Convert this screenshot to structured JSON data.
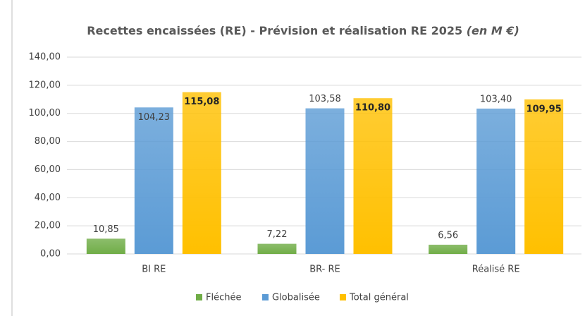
{
  "chart_data": {
    "type": "bar",
    "title": "Recettes encaissées (RE) - Prévision et réalisation RE 2025",
    "title_unit": "(en M €)",
    "categories": [
      "BI RE",
      "BR- RE",
      "Réalisé RE"
    ],
    "series": [
      {
        "name": "Fléchée",
        "color": "#70ad47",
        "values": [
          10.85,
          7.22,
          6.56
        ],
        "value_labels": [
          "10,85",
          "7,22",
          "6,56"
        ]
      },
      {
        "name": "Globalisée",
        "color": "#5b9bd5",
        "values": [
          104.23,
          103.58,
          103.4
        ],
        "value_labels": [
          "104,23",
          "103,58",
          "103,40"
        ]
      },
      {
        "name": "Total général",
        "color": "#ffc000",
        "values": [
          115.08,
          110.8,
          109.95
        ],
        "value_labels": [
          "115,08",
          "110,80",
          "109,95"
        ]
      }
    ],
    "ylim": [
      0,
      140
    ],
    "yticks": [
      {
        "value": 0,
        "label": "0,00"
      },
      {
        "value": 20,
        "label": "20,00"
      },
      {
        "value": 40,
        "label": "40,00"
      },
      {
        "value": 60,
        "label": "60,00"
      },
      {
        "value": 80,
        "label": "80,00"
      },
      {
        "value": 100,
        "label": "100,00"
      },
      {
        "value": 120,
        "label": "120,00"
      },
      {
        "value": 140,
        "label": "140,00"
      }
    ],
    "grid": true
  }
}
